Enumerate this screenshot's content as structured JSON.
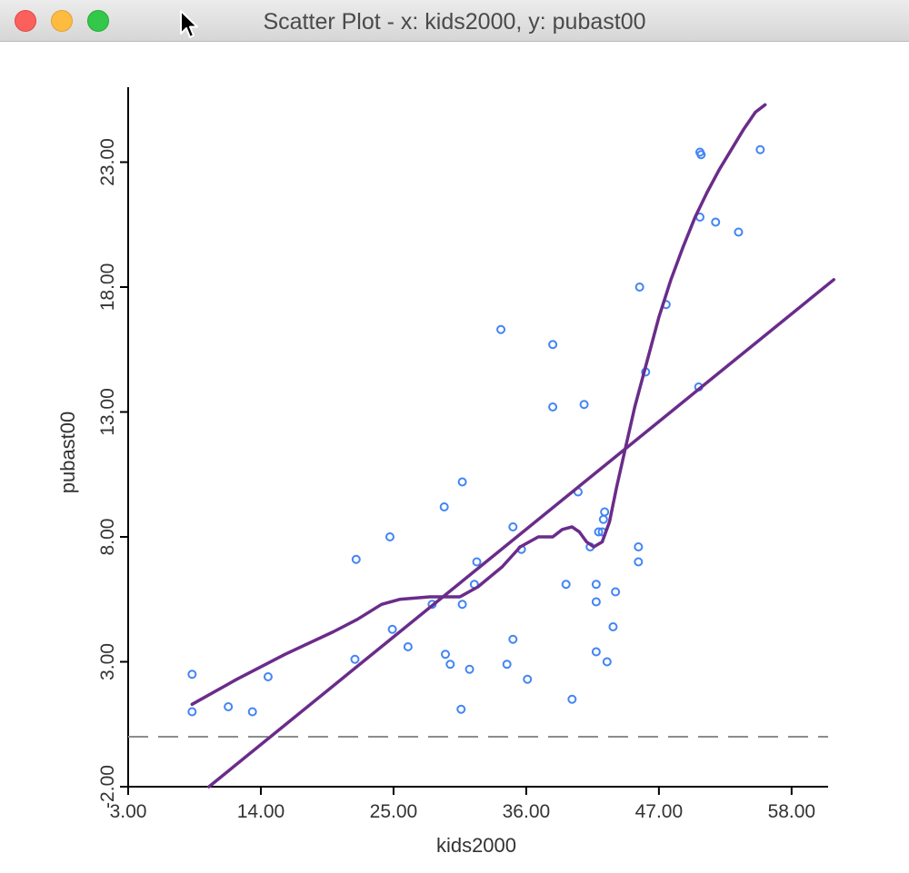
{
  "window": {
    "title": "Scatter Plot - x: kids2000, y: pubast00"
  },
  "colors": {
    "points": "#4285f4",
    "fit_lines": "#6a2c8a",
    "zero_line": "#8c8c8c",
    "axes": "#000000"
  },
  "chart_data": {
    "type": "scatter",
    "xlabel": "kids2000",
    "ylabel": "pubast00",
    "xlim": [
      3.0,
      61.5
    ],
    "ylim": [
      -2.0,
      26.0
    ],
    "x_ticks": [
      3.0,
      14.0,
      25.0,
      36.0,
      47.0,
      58.0
    ],
    "x_tick_labels": [
      "3.00",
      "14.00",
      "25.00",
      "36.00",
      "47.00",
      "58.00"
    ],
    "y_ticks": [
      -2.0,
      3.0,
      8.0,
      13.0,
      18.0,
      23.0
    ],
    "y_tick_labels": [
      "-2.00",
      "3.00",
      "8.00",
      "13.00",
      "18.00",
      "23.00"
    ],
    "grid": false,
    "reference_line_y": 0.0,
    "points": [
      {
        "x": 8.3,
        "y": 2.5
      },
      {
        "x": 8.3,
        "y": 1.0
      },
      {
        "x": 11.3,
        "y": 1.2
      },
      {
        "x": 13.3,
        "y": 1.0
      },
      {
        "x": 14.6,
        "y": 2.4
      },
      {
        "x": 21.8,
        "y": 3.1
      },
      {
        "x": 21.9,
        "y": 7.1
      },
      {
        "x": 24.7,
        "y": 8.0
      },
      {
        "x": 24.9,
        "y": 4.3
      },
      {
        "x": 26.2,
        "y": 3.6
      },
      {
        "x": 28.2,
        "y": 5.3
      },
      {
        "x": 29.2,
        "y": 9.2
      },
      {
        "x": 29.3,
        "y": 3.3
      },
      {
        "x": 29.7,
        "y": 2.9
      },
      {
        "x": 30.6,
        "y": 1.1
      },
      {
        "x": 30.7,
        "y": 5.3
      },
      {
        "x": 30.7,
        "y": 10.2
      },
      {
        "x": 31.3,
        "y": 2.7
      },
      {
        "x": 31.7,
        "y": 6.1
      },
      {
        "x": 31.9,
        "y": 7.0
      },
      {
        "x": 33.9,
        "y": 16.3
      },
      {
        "x": 34.4,
        "y": 2.9
      },
      {
        "x": 34.9,
        "y": 8.4
      },
      {
        "x": 34.9,
        "y": 3.9
      },
      {
        "x": 35.6,
        "y": 7.5
      },
      {
        "x": 36.1,
        "y": 2.3
      },
      {
        "x": 38.2,
        "y": 15.7
      },
      {
        "x": 38.2,
        "y": 13.2
      },
      {
        "x": 39.3,
        "y": 6.1
      },
      {
        "x": 39.8,
        "y": 1.5
      },
      {
        "x": 40.3,
        "y": 9.8
      },
      {
        "x": 40.8,
        "y": 13.3
      },
      {
        "x": 41.3,
        "y": 7.6
      },
      {
        "x": 41.8,
        "y": 6.1
      },
      {
        "x": 41.8,
        "y": 5.4
      },
      {
        "x": 41.8,
        "y": 3.4
      },
      {
        "x": 42.0,
        "y": 8.2
      },
      {
        "x": 42.3,
        "y": 8.2
      },
      {
        "x": 42.4,
        "y": 8.7
      },
      {
        "x": 42.5,
        "y": 9.0
      },
      {
        "x": 42.7,
        "y": 3.0
      },
      {
        "x": 43.2,
        "y": 4.4
      },
      {
        "x": 43.4,
        "y": 5.8
      },
      {
        "x": 45.3,
        "y": 7.6
      },
      {
        "x": 45.3,
        "y": 7.0
      },
      {
        "x": 45.4,
        "y": 18.0
      },
      {
        "x": 45.9,
        "y": 14.6
      },
      {
        "x": 47.6,
        "y": 17.3
      },
      {
        "x": 50.3,
        "y": 14.0
      },
      {
        "x": 50.4,
        "y": 23.4
      },
      {
        "x": 50.5,
        "y": 23.3
      },
      {
        "x": 50.4,
        "y": 20.8
      },
      {
        "x": 51.7,
        "y": 20.6
      },
      {
        "x": 53.6,
        "y": 20.2
      },
      {
        "x": 55.4,
        "y": 23.5
      }
    ],
    "series": [
      {
        "type": "line",
        "x": [
          9.7,
          61.5
        ],
        "y": [
          -2.0,
          18.3
        ]
      },
      {
        "type": "line",
        "x": [
          8.3,
          12.0,
          16.0,
          20.0,
          22.0,
          24.0,
          25.5,
          28.0,
          30.5,
          32.0,
          34.0,
          35.5,
          37.0,
          38.2,
          39.0,
          39.8,
          40.4,
          41.0,
          41.6,
          42.3,
          42.9,
          43.5,
          44.2,
          45.0,
          46.0,
          47.0,
          48.0,
          49.0,
          50.0,
          51.0,
          52.0,
          53.0,
          54.0,
          55.0,
          55.8
        ],
        "y": [
          1.3,
          2.3,
          3.3,
          4.2,
          4.7,
          5.3,
          5.5,
          5.6,
          5.6,
          6.0,
          6.8,
          7.6,
          8.0,
          8.0,
          8.3,
          8.4,
          8.2,
          7.8,
          7.6,
          7.8,
          8.6,
          10.0,
          11.5,
          13.2,
          15.0,
          16.8,
          18.3,
          19.6,
          20.8,
          21.8,
          22.7,
          23.5,
          24.3,
          25.0,
          25.3
        ]
      }
    ]
  }
}
